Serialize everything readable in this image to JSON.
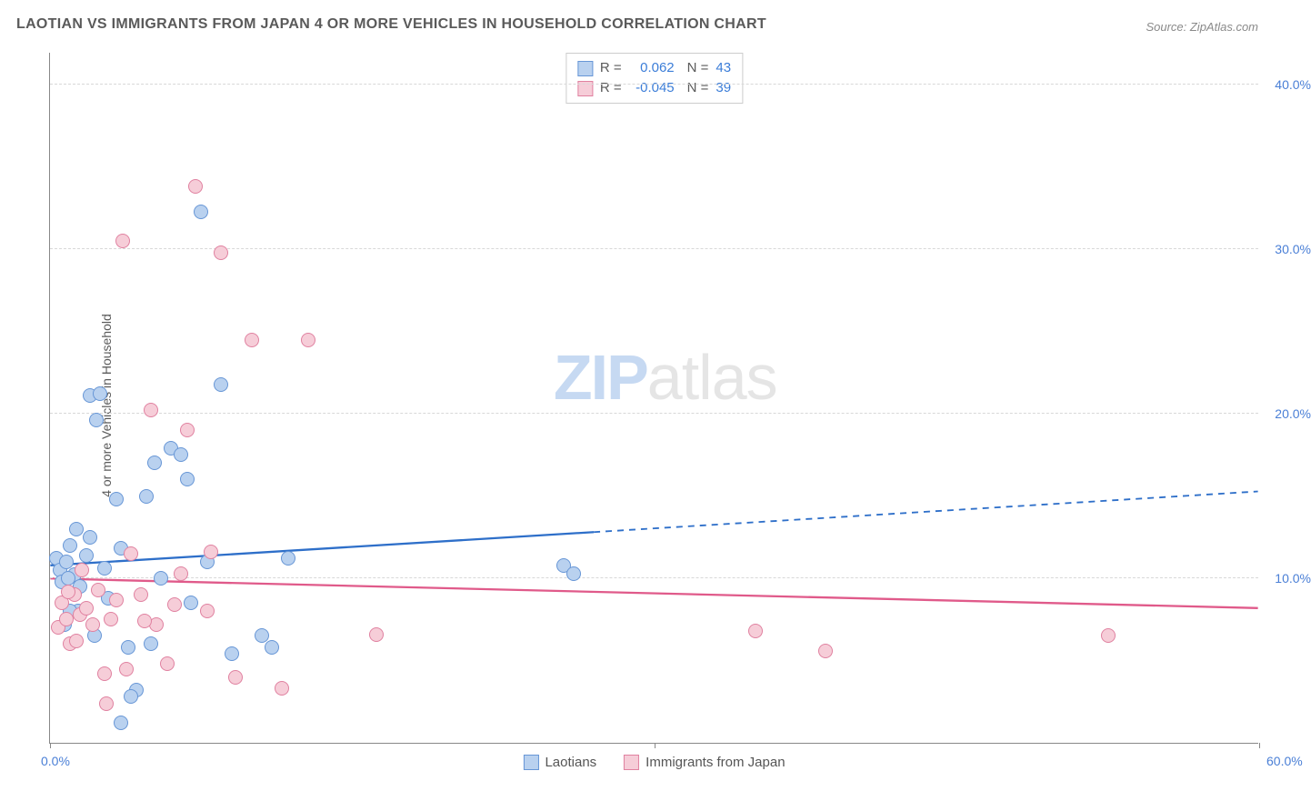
{
  "title": "LAOTIAN VS IMMIGRANTS FROM JAPAN 4 OR MORE VEHICLES IN HOUSEHOLD CORRELATION CHART",
  "source": "Source: ZipAtlas.com",
  "y_axis_label": "4 or more Vehicles in Household",
  "watermark": {
    "part1": "ZIP",
    "part2": "atlas"
  },
  "chart": {
    "type": "scatter",
    "background_color": "#ffffff",
    "grid_color": "#d8d8d8",
    "axis_color": "#888888",
    "label_color": "#5a5a5a",
    "tick_label_color": "#4a7fd6",
    "tick_fontsize": 14,
    "label_fontsize": 14,
    "title_fontsize": 16,
    "xlim": [
      0,
      60
    ],
    "ylim": [
      0,
      42
    ],
    "x_ticks": [
      0,
      30,
      60
    ],
    "x_tick_labels": [
      "0.0%",
      "",
      "60.0%"
    ],
    "y_ticks": [
      10,
      20,
      30,
      40
    ],
    "y_tick_labels": [
      "10.0%",
      "20.0%",
      "30.0%",
      "40.0%"
    ],
    "marker_radius": 8,
    "marker_stroke_width": 1.5,
    "series": [
      {
        "name": "Laotians",
        "fill_color": "#b9d1ef",
        "stroke_color": "#6796d6",
        "r": "0.062",
        "n": "43",
        "trend": {
          "y_at_x0": 10.8,
          "y_at_xmax": 15.3,
          "solid_until_x": 27,
          "line_width": 2.3,
          "color": "#2e6fc9"
        },
        "points": [
          [
            0.3,
            11.2
          ],
          [
            0.5,
            10.5
          ],
          [
            0.6,
            9.8
          ],
          [
            0.8,
            11.0
          ],
          [
            1.0,
            12.0
          ],
          [
            1.2,
            10.2
          ],
          [
            1.3,
            13.0
          ],
          [
            1.4,
            8.0
          ],
          [
            1.8,
            11.4
          ],
          [
            2.0,
            21.1
          ],
          [
            2.3,
            19.6
          ],
          [
            2.5,
            21.2
          ],
          [
            2.7,
            10.6
          ],
          [
            2.9,
            8.8
          ],
          [
            3.3,
            14.8
          ],
          [
            3.5,
            11.8
          ],
          [
            3.9,
            5.8
          ],
          [
            4.3,
            3.2
          ],
          [
            4.8,
            15.0
          ],
          [
            5.0,
            6.0
          ],
          [
            5.2,
            17.0
          ],
          [
            5.5,
            10.0
          ],
          [
            6.0,
            17.9
          ],
          [
            6.5,
            17.5
          ],
          [
            6.8,
            16.0
          ],
          [
            7.0,
            8.5
          ],
          [
            7.5,
            32.3
          ],
          [
            7.8,
            11.0
          ],
          [
            8.5,
            21.8
          ],
          [
            9.0,
            5.4
          ],
          [
            10.5,
            6.5
          ],
          [
            11.0,
            5.8
          ],
          [
            11.8,
            11.2
          ],
          [
            25.5,
            10.8
          ],
          [
            26.0,
            10.3
          ],
          [
            3.5,
            1.2
          ],
          [
            1.0,
            8.0
          ],
          [
            2.0,
            12.5
          ],
          [
            1.5,
            9.5
          ],
          [
            0.9,
            10.0
          ],
          [
            2.2,
            6.5
          ],
          [
            4.0,
            2.8
          ],
          [
            0.7,
            7.2
          ]
        ]
      },
      {
        "name": "Immigrants from Japan",
        "fill_color": "#f6cdd8",
        "stroke_color": "#e081a0",
        "r": "-0.045",
        "n": "39",
        "trend": {
          "y_at_x0": 10.0,
          "y_at_xmax": 8.2,
          "solid_until_x": 60,
          "line_width": 2.3,
          "color": "#e05a8a"
        },
        "points": [
          [
            0.4,
            7.0
          ],
          [
            0.6,
            8.5
          ],
          [
            0.8,
            7.5
          ],
          [
            1.0,
            6.0
          ],
          [
            1.2,
            9.0
          ],
          [
            1.5,
            7.8
          ],
          [
            1.8,
            8.2
          ],
          [
            2.1,
            7.2
          ],
          [
            2.4,
            9.3
          ],
          [
            2.7,
            4.2
          ],
          [
            3.0,
            7.5
          ],
          [
            3.3,
            8.7
          ],
          [
            3.6,
            30.5
          ],
          [
            4.0,
            11.5
          ],
          [
            4.5,
            9.0
          ],
          [
            5.0,
            20.2
          ],
          [
            5.3,
            7.2
          ],
          [
            5.8,
            4.8
          ],
          [
            6.2,
            8.4
          ],
          [
            6.8,
            19.0
          ],
          [
            7.2,
            33.8
          ],
          [
            7.8,
            8.0
          ],
          [
            8.5,
            29.8
          ],
          [
            9.2,
            4.0
          ],
          [
            10.0,
            24.5
          ],
          [
            11.5,
            3.3
          ],
          [
            12.8,
            24.5
          ],
          [
            8.0,
            11.6
          ],
          [
            1.3,
            6.2
          ],
          [
            2.8,
            2.4
          ],
          [
            0.9,
            9.2
          ],
          [
            3.8,
            4.5
          ],
          [
            6.5,
            10.3
          ],
          [
            16.2,
            6.6
          ],
          [
            35.0,
            6.8
          ],
          [
            38.5,
            5.6
          ],
          [
            52.5,
            6.5
          ],
          [
            1.6,
            10.5
          ],
          [
            4.7,
            7.4
          ]
        ]
      }
    ],
    "stats_box": {
      "r_label": "R =",
      "n_label": "N ="
    },
    "bottom_legend": [
      "Laotians",
      "Immigrants from Japan"
    ]
  }
}
